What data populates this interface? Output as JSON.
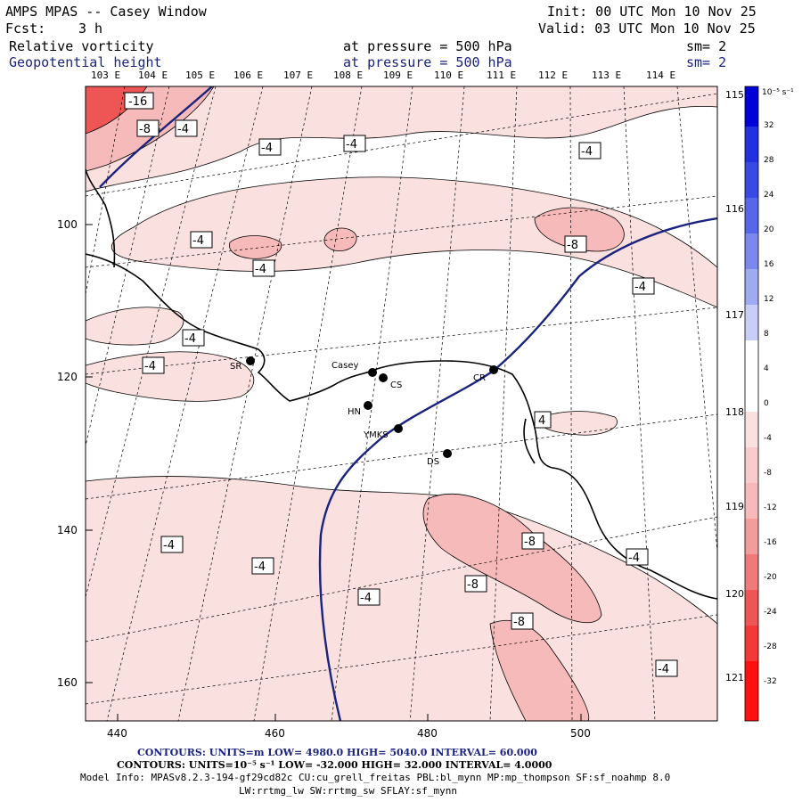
{
  "header": {
    "title": "AMPS MPAS -- Casey Window",
    "fcst_label": "Fcst:",
    "fcst_value": "3 h",
    "init": "Init: 00 UTC Mon 10 Nov 25",
    "valid": "Valid: 03 UTC Mon 10 Nov 25",
    "field1": "Relative vorticity",
    "field1_level": "at pressure =  500 hPa",
    "field1_sm": "sm= 2",
    "field2": "Geopotential height",
    "field2_level": "at pressure =  500 hPa",
    "field2_sm": "sm= 2"
  },
  "lon_labels_top": [
    "103 E",
    "104 E",
    "105 E",
    "106 E",
    "107 E",
    "108 E",
    "109 E",
    "110 E",
    "111 E",
    "112 E",
    "113 E",
    "114 E"
  ],
  "lon_labels_right": [
    "115 E",
    "116 E",
    "117 E",
    "118 E",
    "119 E",
    "120 E",
    "121 E"
  ],
  "y_ticks": [
    "100",
    "120",
    "140",
    "160"
  ],
  "x_ticks": [
    "440",
    "460",
    "480",
    "500"
  ],
  "stations": [
    {
      "id": "SR",
      "label": "SR"
    },
    {
      "id": "Casey",
      "label": "Casey"
    },
    {
      "id": "CS",
      "label": "CS"
    },
    {
      "id": "HN",
      "label": "HN"
    },
    {
      "id": "YMKS",
      "label": "YMKS"
    },
    {
      "id": "DS",
      "label": "DS"
    },
    {
      "id": "CR",
      "label": "CR"
    }
  ],
  "contour_labels": [
    "-16",
    "-8",
    "-4",
    "-4",
    "-4",
    "-4",
    "-4",
    "-4",
    "-8",
    "-4",
    "-4",
    "-4",
    "-4",
    "4",
    "-8",
    "-4",
    "-4",
    "-8",
    "-4",
    "-8",
    "-4"
  ],
  "colorbar": {
    "units": "10⁻⁵ s⁻¹",
    "labels": [
      "32",
      "28",
      "24",
      "20",
      "16",
      "12",
      "8",
      "4",
      "0",
      "-4",
      "-8",
      "-12",
      "-16",
      "-20",
      "-24",
      "-28",
      "-32"
    ],
    "colors": {
      "pos_strong": "#0000d8",
      "pos_mid": "#4a5ae8",
      "pos_light": "#b8bef0",
      "neutral": "#ffffff",
      "neg_light": "#fbe0e0",
      "neg_mid": "#f6baba",
      "neg_strong": "#ee5656",
      "neg_max": "#ff1010"
    }
  },
  "footer": {
    "contours1": "CONTOURS:  UNITS=m  LOW=  4980.0          HIGH=  5040.0          INTERVAL=   60.000",
    "contours2": "CONTOURS:  UNITS=10⁻⁵ s⁻¹  LOW= -32.000         HIGH=  32.000         INTERVAL=   4.0000",
    "model_info1": "Model Info: MPASv8.2.3-194-gf29cd82c CU:cu_grell_freitas PBL:bl_mynn MP:mp_thompson SF:sf_noahmp 8.0",
    "model_info2": "LW:rrtmg_lw SW:rrtmg_sw SFLAY:sf_mynn"
  }
}
